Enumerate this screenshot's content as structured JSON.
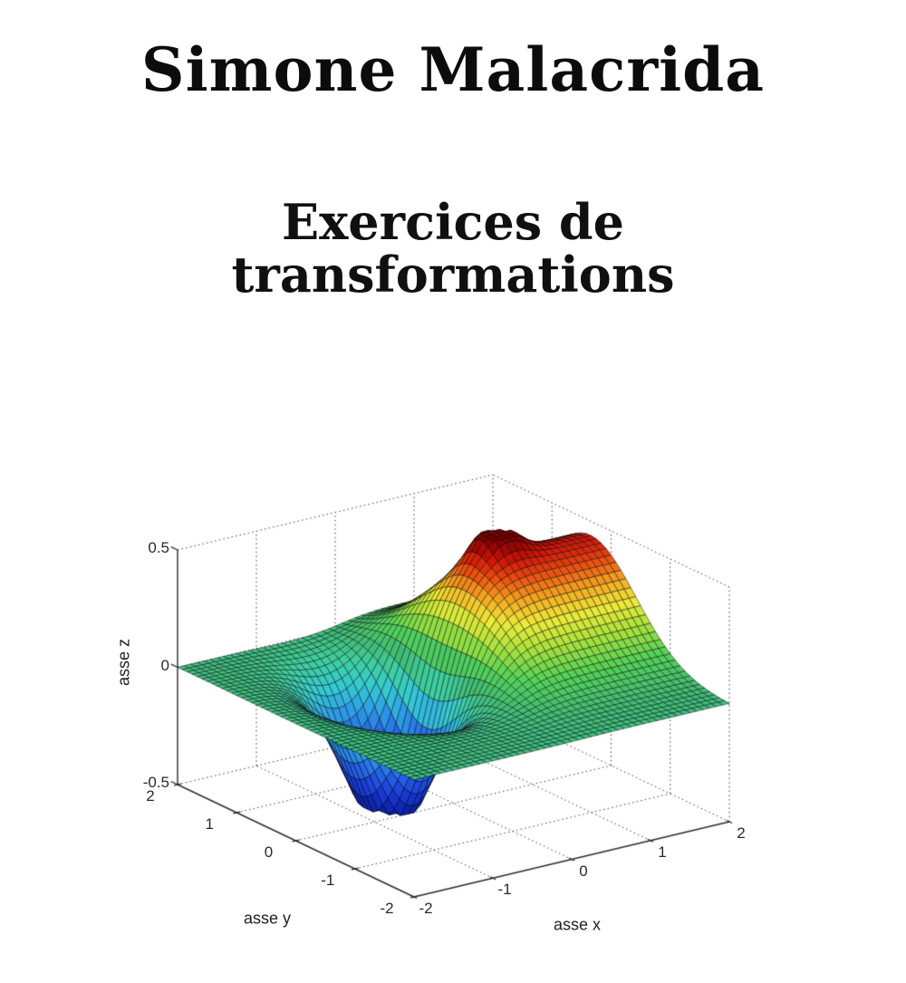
{
  "cover": {
    "author": "Simone Malacrida",
    "title_line1": "Exercices de",
    "title_line2": "transformations"
  },
  "chart_data": {
    "type": "surface",
    "title": "",
    "xlabel": "asse x",
    "ylabel": "asse y",
    "zlabel": "asse z",
    "xlim": [
      -2,
      2
    ],
    "ylim": [
      -2,
      2
    ],
    "zlim": [
      -0.5,
      0.5
    ],
    "x_ticks": [
      -2,
      -1,
      0,
      1,
      2
    ],
    "y_ticks": [
      -2,
      -1,
      0,
      1,
      2
    ],
    "z_ticks": [
      -0.5,
      0,
      0.5
    ],
    "grid": true,
    "grid_style": "dotted",
    "background": "#ffffff",
    "colormap": "jet",
    "colormap_stops": [
      [
        0.0,
        "#0A1B9E"
      ],
      [
        0.1,
        "#1537D2"
      ],
      [
        0.2,
        "#2562E6"
      ],
      [
        0.3,
        "#2C9FE6"
      ],
      [
        0.38,
        "#33CBD4"
      ],
      [
        0.46,
        "#3CCF9F"
      ],
      [
        0.52,
        "#40BC74"
      ],
      [
        0.6,
        "#52D355"
      ],
      [
        0.68,
        "#A6E23B"
      ],
      [
        0.76,
        "#EDEB37"
      ],
      [
        0.83,
        "#F4A51F"
      ],
      [
        0.89,
        "#EC4D10"
      ],
      [
        0.94,
        "#D01408"
      ],
      [
        1.0,
        "#7C0000"
      ]
    ],
    "mesh_divisions": 48,
    "surface_model": {
      "description": "flat region near z=0 with raised red plateau ridge (crest about 0.44) toward +x centered near y=0.35, small dome peak clipped at z=0.5 near (0.95,0.6), and gaussian depression reaching z=-0.5 centered near (-0.55,0.35)",
      "plateau": {
        "amp": 0.44,
        "steepness": 5,
        "x0": 0.1,
        "env_y0": 0.35,
        "env_sigma2": 1.2
      },
      "dip": {
        "amp": 0.66,
        "x0": -0.55,
        "sigma2_x": 0.33,
        "y0": 0.35,
        "sigma2_y": 0.55
      },
      "dome": {
        "amp": 0.15,
        "x0": 0.95,
        "y0": 0.6,
        "sigma2": 0.085
      },
      "clip": [
        -0.5,
        0.5
      ]
    }
  }
}
